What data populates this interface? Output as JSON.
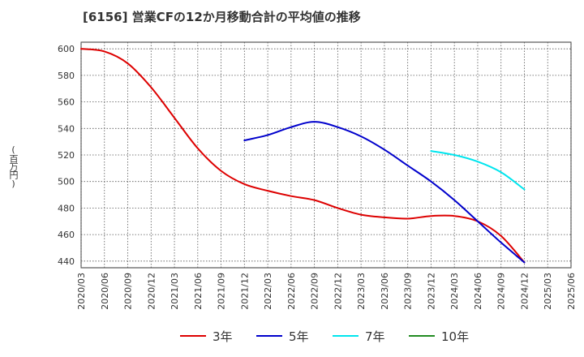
{
  "title": "[6156]  営業CFの12か月移動合計の平均値の推移",
  "y_unit": "(百万円)",
  "chart_data": {
    "type": "line",
    "title": "[6156]  営業CFの12か月移動合計の平均値の推移",
    "xlabel": "",
    "ylabel": "(百万円)",
    "ylim": [
      435,
      605
    ],
    "yticks": [
      440,
      460,
      480,
      500,
      520,
      540,
      560,
      580,
      600
    ],
    "xlim": [
      "2020/03",
      "2025/06"
    ],
    "xticks": [
      "2020/03",
      "2020/06",
      "2020/09",
      "2020/12",
      "2021/03",
      "2021/06",
      "2021/09",
      "2021/12",
      "2022/03",
      "2022/06",
      "2022/09",
      "2022/12",
      "2023/03",
      "2023/06",
      "2023/09",
      "2023/12",
      "2024/03",
      "2024/06",
      "2024/09",
      "2024/12",
      "2025/03",
      "2025/06"
    ],
    "grid": true,
    "legend_position": "bottom",
    "series": [
      {
        "name": "3年",
        "color": "#dd0000",
        "points": [
          [
            "2020/03",
            600
          ],
          [
            "2020/06",
            598
          ],
          [
            "2020/09",
            589
          ],
          [
            "2020/12",
            571
          ],
          [
            "2021/03",
            548
          ],
          [
            "2021/06",
            525
          ],
          [
            "2021/09",
            508
          ],
          [
            "2021/12",
            498
          ],
          [
            "2022/03",
            493
          ],
          [
            "2022/06",
            489
          ],
          [
            "2022/09",
            486
          ],
          [
            "2022/12",
            480
          ],
          [
            "2023/03",
            475
          ],
          [
            "2023/06",
            473
          ],
          [
            "2023/09",
            472
          ],
          [
            "2023/12",
            474
          ],
          [
            "2024/03",
            474
          ],
          [
            "2024/06",
            470
          ],
          [
            "2024/09",
            459
          ],
          [
            "2024/12",
            439
          ]
        ]
      },
      {
        "name": "5年",
        "color": "#0000cc",
        "points": [
          [
            "2021/12",
            531
          ],
          [
            "2022/03",
            535
          ],
          [
            "2022/06",
            541
          ],
          [
            "2022/09",
            545
          ],
          [
            "2022/12",
            541
          ],
          [
            "2023/03",
            534
          ],
          [
            "2023/06",
            524
          ],
          [
            "2023/09",
            512
          ],
          [
            "2023/12",
            500
          ],
          [
            "2024/03",
            486
          ],
          [
            "2024/06",
            470
          ],
          [
            "2024/09",
            454
          ],
          [
            "2024/12",
            439
          ]
        ]
      },
      {
        "name": "7年",
        "color": "#00e5ee",
        "points": [
          [
            "2023/12",
            523
          ],
          [
            "2024/03",
            520
          ],
          [
            "2024/06",
            515
          ],
          [
            "2024/09",
            507
          ],
          [
            "2024/12",
            494
          ]
        ]
      },
      {
        "name": "10年",
        "color": "#228b22",
        "points": []
      }
    ]
  }
}
